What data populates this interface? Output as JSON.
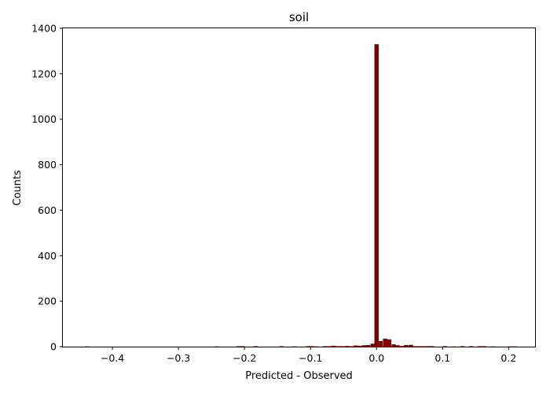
{
  "chart_data": {
    "type": "bar",
    "title": "soil",
    "xlabel": "Predicted - Observed",
    "ylabel": "Counts",
    "xlim": [
      -0.475,
      0.24
    ],
    "ylim": [
      0,
      1400
    ],
    "bar_width": 0.00652,
    "bar_color": "#800000",
    "grid": false,
    "x_ticks": [
      -0.4,
      -0.3,
      -0.2,
      -0.1,
      0.0,
      0.1,
      0.2
    ],
    "x_tick_labels": [
      "−0.4",
      "−0.3",
      "−0.2",
      "−0.1",
      "0.0",
      "0.1",
      "0.2"
    ],
    "y_ticks": [
      0,
      200,
      400,
      600,
      800,
      1000,
      1200,
      1400
    ],
    "y_tick_labels": [
      "0",
      "200",
      "400",
      "600",
      "800",
      "1000",
      "1200",
      "1400"
    ],
    "bins": [
      {
        "x": -0.438,
        "count": 1
      },
      {
        "x": -0.242,
        "count": 1
      },
      {
        "x": -0.209,
        "count": 2
      },
      {
        "x": -0.203,
        "count": 2
      },
      {
        "x": -0.183,
        "count": 2
      },
      {
        "x": -0.144,
        "count": 2
      },
      {
        "x": -0.124,
        "count": 1
      },
      {
        "x": -0.104,
        "count": 2
      },
      {
        "x": -0.098,
        "count": 2
      },
      {
        "x": -0.091,
        "count": 1
      },
      {
        "x": -0.078,
        "count": 2
      },
      {
        "x": -0.071,
        "count": 2
      },
      {
        "x": -0.065,
        "count": 4
      },
      {
        "x": -0.058,
        "count": 2
      },
      {
        "x": -0.052,
        "count": 2
      },
      {
        "x": -0.045,
        "count": 3
      },
      {
        "x": -0.039,
        "count": 2
      },
      {
        "x": -0.032,
        "count": 5
      },
      {
        "x": -0.026,
        "count": 4
      },
      {
        "x": -0.019,
        "count": 6
      },
      {
        "x": -0.013,
        "count": 7
      },
      {
        "x": -0.006,
        "count": 13
      },
      {
        "x": 0.0,
        "count": 1330
      },
      {
        "x": 0.006,
        "count": 25
      },
      {
        "x": 0.013,
        "count": 35
      },
      {
        "x": 0.019,
        "count": 32
      },
      {
        "x": 0.026,
        "count": 10
      },
      {
        "x": 0.032,
        "count": 6
      },
      {
        "x": 0.039,
        "count": 3
      },
      {
        "x": 0.045,
        "count": 7
      },
      {
        "x": 0.052,
        "count": 8
      },
      {
        "x": 0.058,
        "count": 2
      },
      {
        "x": 0.065,
        "count": 2
      },
      {
        "x": 0.071,
        "count": 2
      },
      {
        "x": 0.078,
        "count": 2
      },
      {
        "x": 0.084,
        "count": 2
      },
      {
        "x": 0.104,
        "count": 2
      },
      {
        "x": 0.117,
        "count": 1
      },
      {
        "x": 0.13,
        "count": 2
      },
      {
        "x": 0.143,
        "count": 2
      },
      {
        "x": 0.156,
        "count": 2
      },
      {
        "x": 0.163,
        "count": 2
      },
      {
        "x": 0.176,
        "count": 1
      },
      {
        "x": 0.202,
        "count": 1
      },
      {
        "x": 0.209,
        "count": 1
      }
    ]
  }
}
